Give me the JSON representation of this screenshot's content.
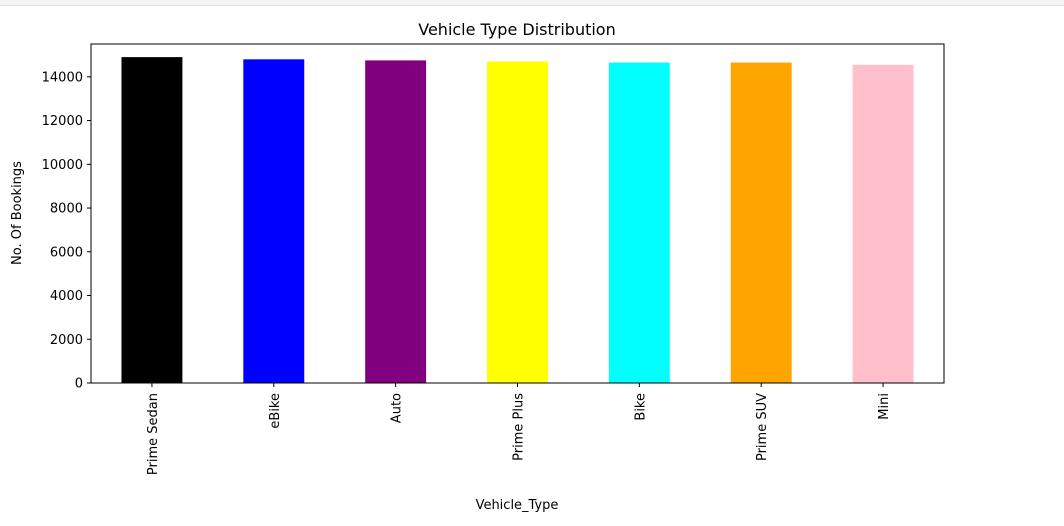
{
  "chart_data": {
    "type": "bar",
    "title": "Vehicle Type Distribution",
    "xlabel": "Vehicle_Type",
    "ylabel": "No. Of Bookings",
    "categories": [
      "Prime Sedan",
      "eBike",
      "Auto",
      "Prime Plus",
      "Bike",
      "Prime SUV",
      "Mini"
    ],
    "values": [
      14900,
      14800,
      14750,
      14700,
      14650,
      14650,
      14550
    ],
    "colors": [
      "#000000",
      "#0000ff",
      "#800080",
      "#ffff00",
      "#00ffff",
      "#ffa500",
      "#ffc0cb"
    ],
    "ylim": [
      0,
      15500
    ],
    "yticks": [
      0,
      2000,
      4000,
      6000,
      8000,
      10000,
      12000,
      14000
    ],
    "grid": false,
    "legend": "none"
  }
}
